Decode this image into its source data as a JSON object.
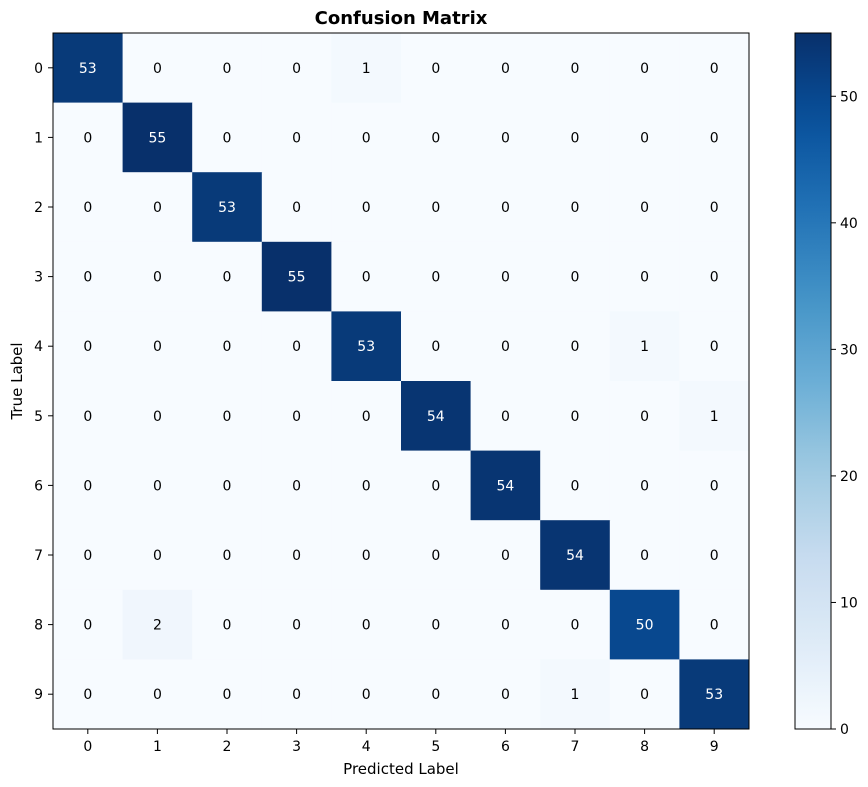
{
  "chart_data": {
    "type": "heatmap",
    "title": "Confusion Matrix",
    "xlabel": "Predicted Label",
    "ylabel": "True Label",
    "x_categories": [
      "0",
      "1",
      "2",
      "3",
      "4",
      "5",
      "6",
      "7",
      "8",
      "9"
    ],
    "y_categories": [
      "0",
      "1",
      "2",
      "3",
      "4",
      "5",
      "6",
      "7",
      "8",
      "9"
    ],
    "values": [
      [
        53,
        0,
        0,
        0,
        1,
        0,
        0,
        0,
        0,
        0
      ],
      [
        0,
        55,
        0,
        0,
        0,
        0,
        0,
        0,
        0,
        0
      ],
      [
        0,
        0,
        53,
        0,
        0,
        0,
        0,
        0,
        0,
        0
      ],
      [
        0,
        0,
        0,
        55,
        0,
        0,
        0,
        0,
        0,
        0
      ],
      [
        0,
        0,
        0,
        0,
        53,
        0,
        0,
        0,
        1,
        0
      ],
      [
        0,
        0,
        0,
        0,
        0,
        54,
        0,
        0,
        0,
        1
      ],
      [
        0,
        0,
        0,
        0,
        0,
        0,
        54,
        0,
        0,
        0
      ],
      [
        0,
        0,
        0,
        0,
        0,
        0,
        0,
        54,
        0,
        0
      ],
      [
        0,
        2,
        0,
        0,
        0,
        0,
        0,
        0,
        50,
        0
      ],
      [
        0,
        0,
        0,
        0,
        0,
        0,
        0,
        1,
        0,
        53
      ]
    ],
    "colormap": "Blues",
    "vmin": 0,
    "vmax": 55,
    "colorbar": {
      "ticks": [
        "0",
        "10",
        "20",
        "30",
        "40",
        "50"
      ]
    }
  }
}
